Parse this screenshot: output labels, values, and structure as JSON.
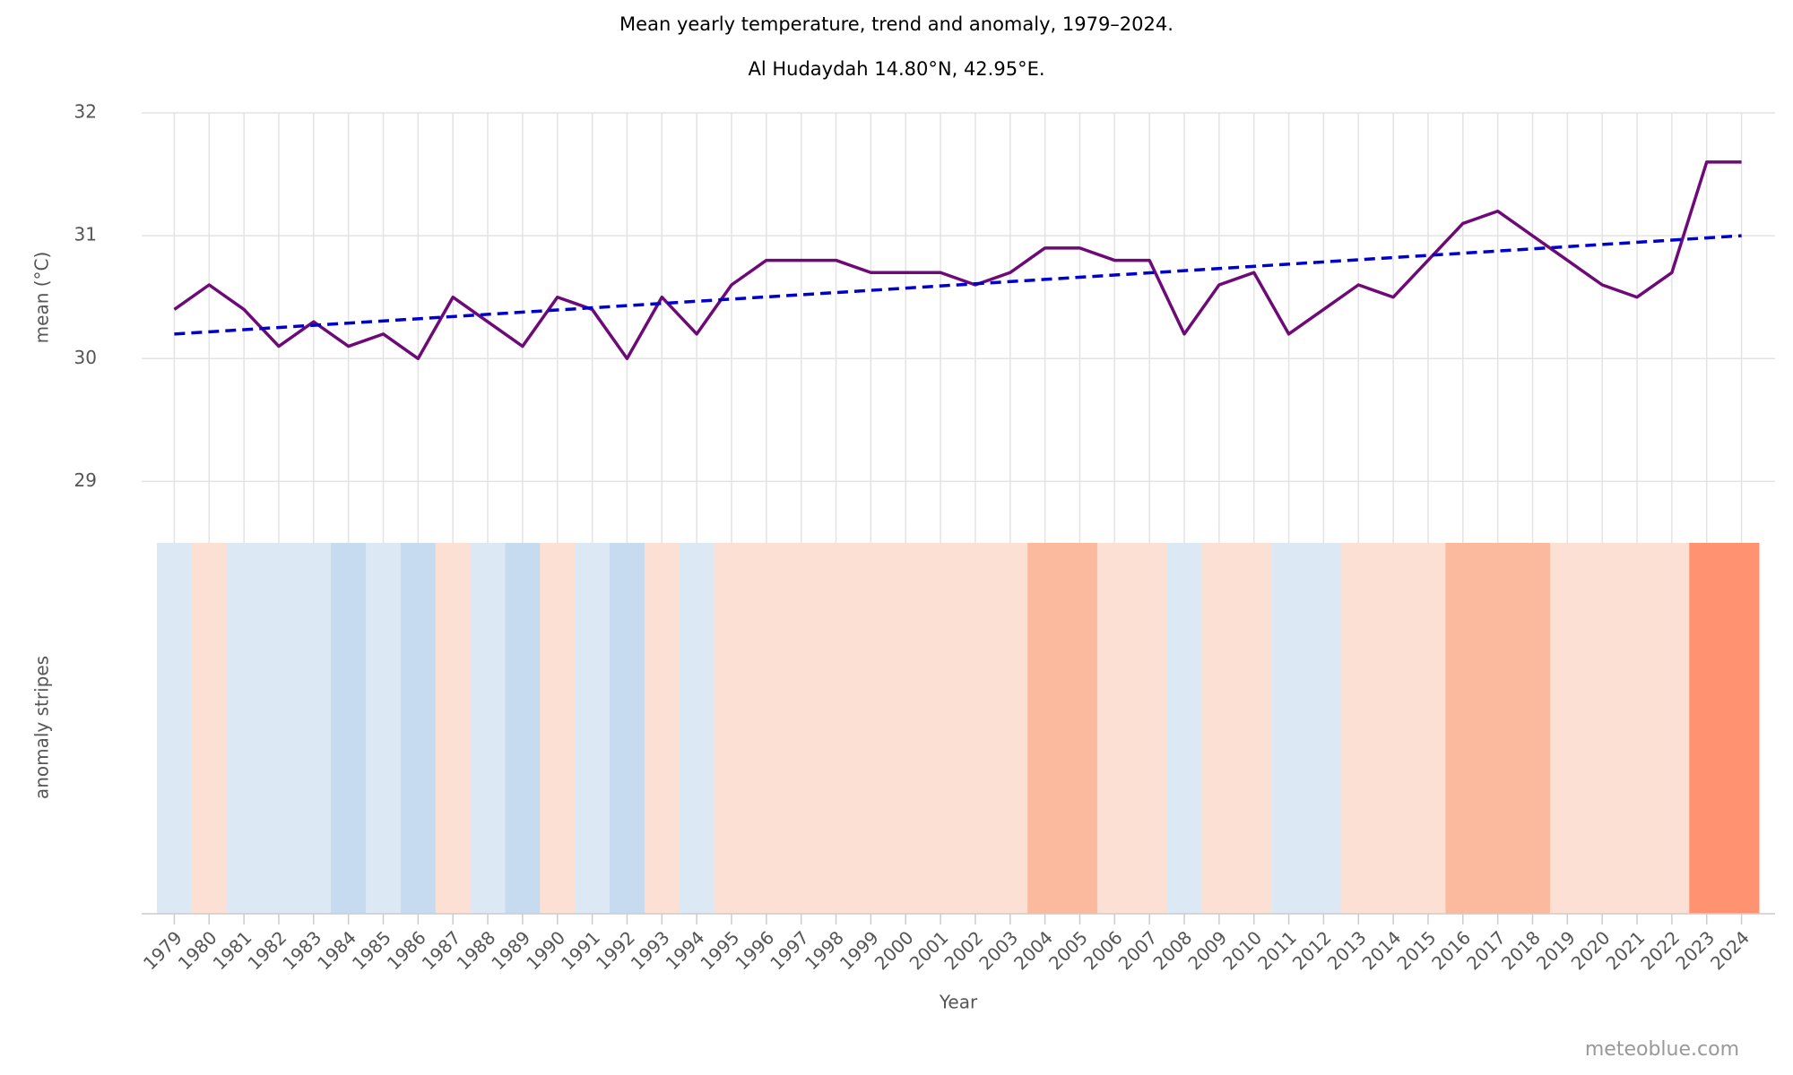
{
  "chart_data": {
    "type": "line",
    "title": "Mean yearly temperature, trend and anomaly, 1979–2024.",
    "subtitle": "Al Hudaydah 14.80°N, 42.95°E.",
    "y_label": "mean (°C)",
    "stripes_label": "anomaly stripes",
    "x_label": "Year",
    "credit": "meteoblue.com",
    "x": [
      1979,
      1980,
      1981,
      1982,
      1983,
      1984,
      1985,
      1986,
      1987,
      1988,
      1989,
      1990,
      1991,
      1992,
      1993,
      1994,
      1995,
      1996,
      1997,
      1998,
      1999,
      2000,
      2001,
      2002,
      2003,
      2004,
      2005,
      2006,
      2007,
      2008,
      2009,
      2010,
      2011,
      2012,
      2013,
      2014,
      2015,
      2016,
      2017,
      2018,
      2019,
      2020,
      2021,
      2022,
      2023,
      2024
    ],
    "xlim": [
      1978.5,
      2024.5
    ],
    "series": [
      {
        "color": "#6e0a78",
        "values": [
          30.4,
          30.6,
          30.4,
          30.1,
          30.3,
          30.1,
          30.2,
          30.0,
          30.5,
          30.3,
          30.1,
          30.5,
          30.4,
          30.0,
          30.5,
          30.2,
          30.6,
          30.8,
          30.8,
          30.8,
          30.7,
          30.7,
          30.7,
          30.6,
          30.7,
          30.9,
          30.9,
          30.8,
          30.8,
          30.2,
          30.6,
          30.7,
          30.2,
          30.4,
          30.6,
          30.5,
          30.8,
          31.1,
          31.2,
          31.0,
          30.8,
          30.6,
          30.5,
          30.7,
          31.6,
          31.6
        ]
      },
      {
        "color": "#0000cc",
        "dashed": true,
        "x": [
          1979,
          2024
        ],
        "values": [
          30.2,
          31.0
        ]
      }
    ],
    "stripe_colors": [
      "#dde8f5",
      "#fde0d4",
      "#dde8f5",
      "#dde8f5",
      "#dde8f5",
      "#c6daf0",
      "#dde8f5",
      "#c6daf0",
      "#fde0d4",
      "#dde8f5",
      "#c6daf0",
      "#fde0d4",
      "#dde8f5",
      "#c6daf0",
      "#fde0d4",
      "#dde8f5",
      "#fde0d4",
      "#fde0d4",
      "#fde0d4",
      "#fde0d4",
      "#fde0d4",
      "#fde0d4",
      "#fde0d4",
      "#fde0d4",
      "#fde0d4",
      "#fbb99e",
      "#fbb99e",
      "#fde0d4",
      "#fde0d4",
      "#dde8f5",
      "#fde0d4",
      "#fde0d4",
      "#dde8f5",
      "#dde8f5",
      "#fde0d4",
      "#fde0d4",
      "#fde0d4",
      "#fbb99e",
      "#fbb99e",
      "#fbb99e",
      "#fde0d4",
      "#fde0d4",
      "#fde0d4",
      "#fde0d4",
      "#fe9271",
      "#fe9271"
    ],
    "ylim": [
      28.5,
      32
    ],
    "yticks": [
      29,
      30,
      31,
      32
    ],
    "grid": true
  }
}
